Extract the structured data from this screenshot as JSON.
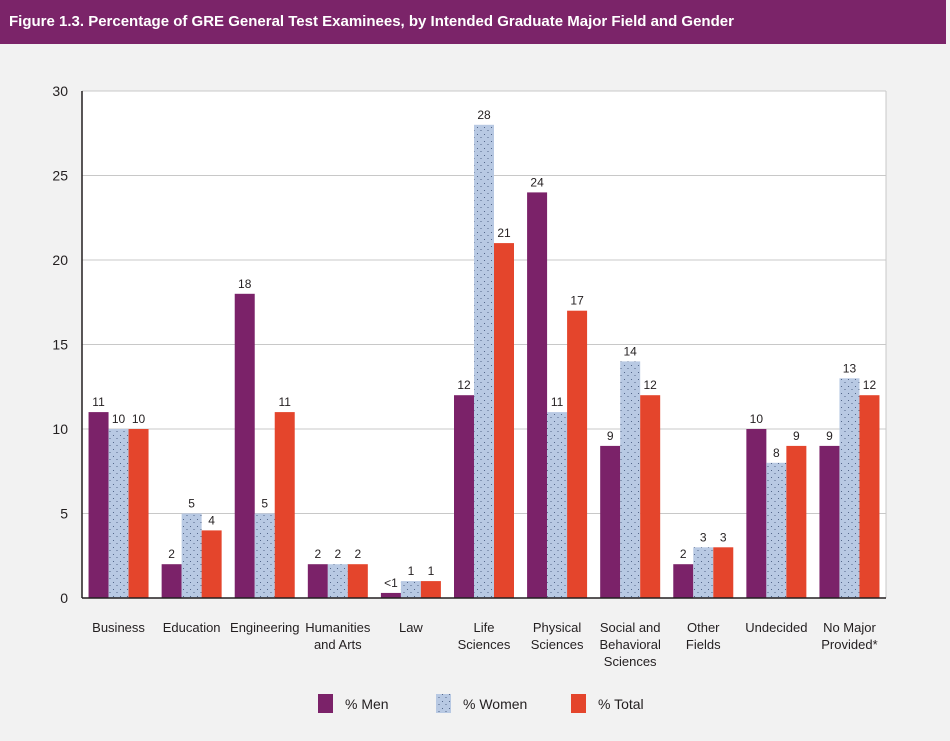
{
  "title": "Figure 1.3. Percentage of GRE General Test Examinees, by Intended Graduate Major Field and Gender",
  "colors": {
    "header": "#7b2469",
    "men": "#7b2269",
    "women": "#b8c9e3",
    "total": "#e4452c"
  },
  "legend": [
    {
      "key": "men",
      "label": "% Men"
    },
    {
      "key": "women",
      "label": "% Women"
    },
    {
      "key": "total",
      "label": "% Total"
    }
  ],
  "chart_data": {
    "type": "bar",
    "categories": [
      [
        "Business"
      ],
      [
        "Education"
      ],
      [
        "Engineering"
      ],
      [
        "Humanities",
        "and Arts"
      ],
      [
        "Law"
      ],
      [
        "Life",
        "Sciences"
      ],
      [
        "Physical",
        "Sciences"
      ],
      [
        "Social and",
        "Behavioral",
        "Sciences"
      ],
      [
        "Other",
        "Fields"
      ],
      [
        "Undecided"
      ],
      [
        "No Major",
        "Provided*"
      ]
    ],
    "series": [
      {
        "name": "% Men",
        "values": [
          11,
          2,
          18,
          2,
          0.3,
          12,
          24,
          9,
          2,
          10,
          9
        ],
        "labels": [
          "11",
          "2",
          "18",
          "2",
          "<1",
          "12",
          "24",
          "9",
          "2",
          "10",
          "9"
        ]
      },
      {
        "name": "% Women",
        "values": [
          10,
          5,
          5,
          2,
          1,
          28,
          11,
          14,
          3,
          8,
          13
        ],
        "labels": [
          "10",
          "5",
          "5",
          "2",
          "1",
          "28",
          "11",
          "14",
          "3",
          "8",
          "13"
        ]
      },
      {
        "name": "% Total",
        "values": [
          10,
          4,
          11,
          2,
          1,
          21,
          17,
          12,
          3,
          9,
          12
        ],
        "labels": [
          "10",
          "4",
          "11",
          "2",
          "1",
          "21",
          "17",
          "12",
          "3",
          "9",
          "12"
        ]
      }
    ],
    "ylim": [
      0,
      30
    ],
    "yticks": [
      "0",
      "5",
      "10",
      "15",
      "20",
      "25",
      "30"
    ],
    "grid": true,
    "legend_position": "bottom"
  }
}
